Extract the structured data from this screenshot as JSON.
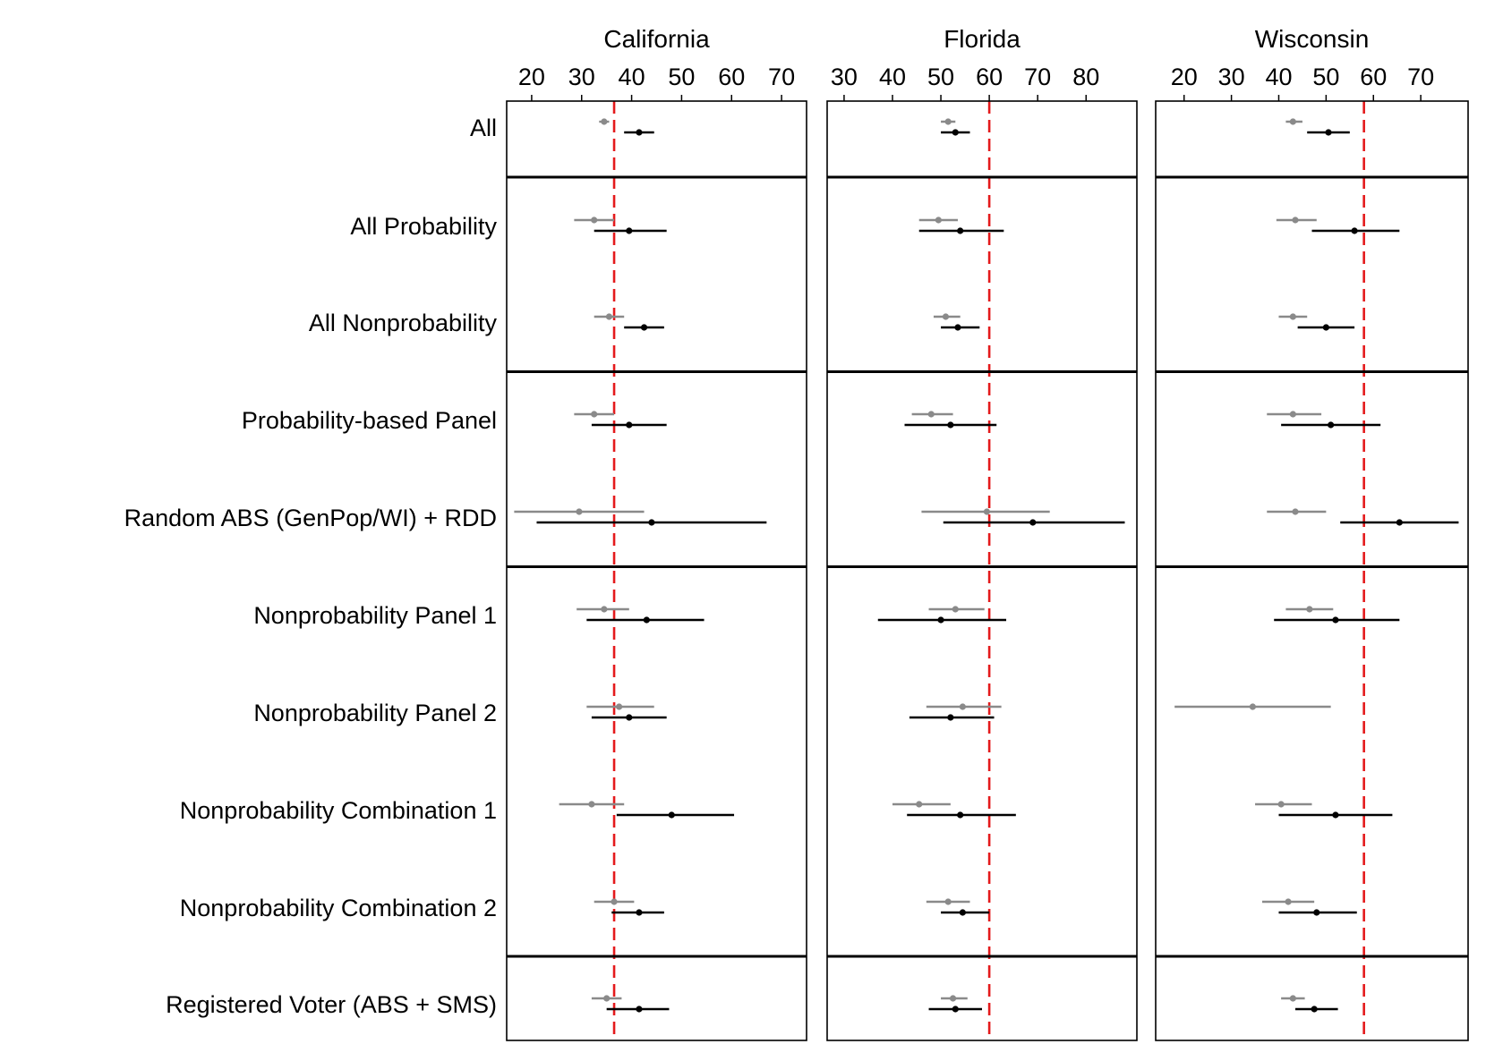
{
  "chart_data": {
    "type": "dot-and-whisker",
    "colors": {
      "grey_estimate": "#8a8a8a",
      "black_estimate": "#000000",
      "reference_line": "#e41a1c",
      "frame": "#000000"
    },
    "rows": [
      "All",
      "All Probability",
      "All Nonprobability",
      "Probability-based Panel",
      "Random ABS (GenPop/WI) + RDD",
      "Nonprobability Panel 1",
      "Nonprobability Panel 2",
      "Nonprobability Combination 1",
      "Nonprobability Combination 2",
      "Registered Voter (ABS + SMS)"
    ],
    "groups": [
      [
        0
      ],
      [
        1,
        2
      ],
      [
        3,
        4
      ],
      [
        5,
        6,
        7,
        8
      ],
      [
        9
      ]
    ],
    "panels": [
      {
        "title": "California",
        "xlim": [
          15,
          75
        ],
        "ticks": [
          20,
          30,
          40,
          50,
          60,
          70
        ],
        "reference": 36.5,
        "grey": [
          [
            34.5,
            33.5,
            35.5
          ],
          [
            32.5,
            28.5,
            36.5
          ],
          [
            35.5,
            32.5,
            38.5
          ],
          [
            32.5,
            28.5,
            36.5
          ],
          [
            29.5,
            16.5,
            42.5
          ],
          [
            34.5,
            29.0,
            39.5
          ],
          [
            37.5,
            31.0,
            44.5
          ],
          [
            32.0,
            25.5,
            38.5
          ],
          [
            36.5,
            32.5,
            40.5
          ],
          [
            35.0,
            32.0,
            38.0
          ]
        ],
        "black": [
          [
            41.5,
            38.5,
            44.5
          ],
          [
            39.5,
            32.5,
            47.0
          ],
          [
            42.5,
            38.5,
            46.5
          ],
          [
            39.5,
            32.0,
            47.0
          ],
          [
            44.0,
            21.0,
            67.0
          ],
          [
            43.0,
            31.0,
            54.5
          ],
          [
            39.5,
            32.0,
            47.0
          ],
          [
            48.0,
            37.0,
            60.5
          ],
          [
            41.5,
            36.0,
            46.5
          ],
          [
            41.5,
            35.0,
            47.5
          ]
        ]
      },
      {
        "title": "Florida",
        "xlim": [
          26.5,
          90.5
        ],
        "ticks": [
          30,
          40,
          50,
          60,
          70,
          80
        ],
        "reference": 60,
        "grey": [
          [
            51.5,
            50.0,
            53.0
          ],
          [
            49.5,
            45.5,
            53.5
          ],
          [
            51.0,
            48.5,
            54.0
          ],
          [
            48.0,
            44.0,
            52.5
          ],
          [
            59.5,
            46.0,
            72.5
          ],
          [
            53.0,
            47.5,
            59.0
          ],
          [
            54.5,
            47.0,
            62.5
          ],
          [
            45.5,
            40.0,
            52.0
          ],
          [
            51.5,
            47.0,
            56.0
          ],
          [
            52.5,
            50.0,
            55.5
          ]
        ],
        "black": [
          [
            53.0,
            50.0,
            56.0
          ],
          [
            54.0,
            45.5,
            63.0
          ],
          [
            53.5,
            50.0,
            58.0
          ],
          [
            52.0,
            42.5,
            61.5
          ],
          [
            69.0,
            50.5,
            88.0
          ],
          [
            50.0,
            37.0,
            63.5
          ],
          [
            52.0,
            43.5,
            61.0
          ],
          [
            54.0,
            43.0,
            65.5
          ],
          [
            54.5,
            50.0,
            60.0
          ],
          [
            53.0,
            47.5,
            58.5
          ]
        ]
      },
      {
        "title": "Wisconsin",
        "xlim": [
          14,
          80
        ],
        "ticks": [
          20,
          30,
          40,
          50,
          60,
          70
        ],
        "reference": 58,
        "grey": [
          [
            43.0,
            41.5,
            45.0
          ],
          [
            43.5,
            39.5,
            48.0
          ],
          [
            43.0,
            40.0,
            46.0
          ],
          [
            43.0,
            37.5,
            49.0
          ],
          [
            43.5,
            37.5,
            50.0
          ],
          [
            46.5,
            41.5,
            51.5
          ],
          [
            34.5,
            18.0,
            51.0
          ],
          [
            40.5,
            35.0,
            47.0
          ],
          [
            42.0,
            36.5,
            47.5
          ],
          [
            43.0,
            40.5,
            45.5
          ]
        ],
        "black": [
          [
            50.5,
            46.0,
            55.0
          ],
          [
            56.0,
            47.0,
            65.5
          ],
          [
            50.0,
            44.0,
            56.0
          ],
          [
            51.0,
            40.5,
            61.5
          ],
          [
            65.5,
            53.0,
            78.0
          ],
          [
            52.0,
            39.0,
            65.5
          ],
          null,
          [
            52.0,
            40.0,
            64.0
          ],
          [
            48.0,
            40.0,
            56.5
          ],
          [
            47.5,
            43.5,
            52.5
          ]
        ]
      }
    ]
  }
}
